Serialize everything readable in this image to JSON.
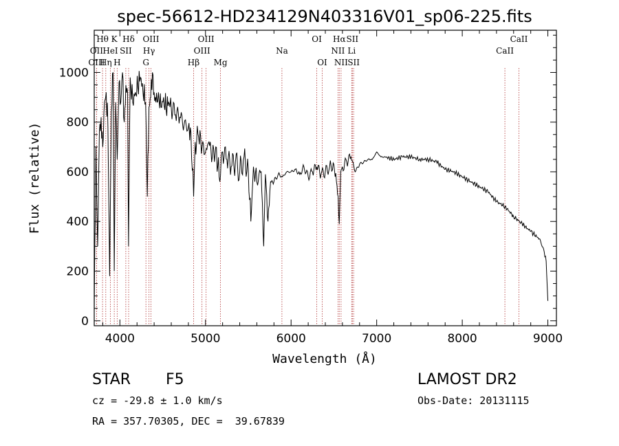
{
  "chart_data": {
    "type": "line",
    "title": "spec-56612-HD234129N403316V01_sp06-225.fits",
    "xlabel": "Wavelength (Å)",
    "ylabel": "Flux (relative)",
    "xlim": [
      3700,
      9100
    ],
    "ylim": [
      -20,
      1170
    ],
    "xticks": [
      4000,
      5000,
      6000,
      7000,
      8000,
      9000
    ],
    "yticks": [
      0,
      200,
      400,
      600,
      800,
      1000
    ],
    "grid": false,
    "series": [
      {
        "x": [
          3700,
          3720,
          3740,
          3760,
          3780,
          3800,
          3820,
          3840,
          3860,
          3880,
          3900,
          3920,
          3934,
          3950,
          3968,
          3990,
          4010,
          4030,
          4050,
          4070,
          4090,
          4101,
          4120,
          4150,
          4180,
          4210,
          4240,
          4270,
          4300,
          4320,
          4340,
          4360,
          4380,
          4400,
          4420,
          4450,
          4480,
          4510,
          4540,
          4570,
          4600,
          4650,
          4700,
          4750,
          4800,
          4830,
          4861,
          4880,
          4920,
          4960,
          5000,
          5040,
          5080,
          5120,
          5167,
          5200,
          5250,
          5300,
          5350,
          5400,
          5450,
          5500,
          5530,
          5560,
          5600,
          5650,
          5680,
          5700,
          5730,
          5760,
          5800,
          5850,
          5900,
          5950,
          6000,
          6050,
          6100,
          6150,
          6200,
          6250,
          6300,
          6350,
          6400,
          6450,
          6500,
          6530,
          6550,
          6563,
          6580,
          6600,
          6650,
          6700,
          6750,
          6800,
          6850,
          6900,
          6950,
          7000,
          7050,
          7100,
          7200,
          7300,
          7400,
          7500,
          7600,
          7700,
          7800,
          7900,
          8000,
          8100,
          8200,
          8300,
          8400,
          8500,
          8600,
          8700,
          8800,
          8900,
          8950,
          8980,
          9000
        ],
        "y": [
          40,
          700,
          300,
          760,
          820,
          700,
          880,
          920,
          780,
          180,
          840,
          1000,
          200,
          880,
          650,
          960,
          880,
          1000,
          800,
          950,
          920,
          300,
          980,
          880,
          920,
          940,
          980,
          920,
          880,
          500,
          860,
          900,
          1000,
          920,
          880,
          920,
          860,
          900,
          850,
          880,
          860,
          830,
          820,
          790,
          780,
          760,
          500,
          720,
          740,
          700,
          680,
          720,
          660,
          700,
          560,
          680,
          650,
          620,
          640,
          600,
          660,
          610,
          400,
          620,
          560,
          600,
          300,
          590,
          400,
          560,
          560,
          590,
          580,
          600,
          600,
          610,
          590,
          620,
          580,
          600,
          620,
          590,
          600,
          620,
          630,
          560,
          500,
          390,
          600,
          620,
          640,
          660,
          600,
          630,
          640,
          650,
          650,
          680,
          660,
          660,
          650,
          660,
          660,
          650,
          650,
          640,
          610,
          600,
          580,
          560,
          540,
          520,
          480,
          460,
          420,
          390,
          360,
          330,
          290,
          240,
          80
        ]
      }
    ],
    "line_markers": [
      {
        "label": "Hθ",
        "x": 3797,
        "row": 1
      },
      {
        "label": "OII",
        "x": 3727,
        "row": 2
      },
      {
        "label": "OIII",
        "x": 3727,
        "row": 3
      },
      {
        "label": "K",
        "x": 3934,
        "row": 1
      },
      {
        "label": "HeI",
        "x": 3889,
        "row": 2
      },
      {
        "label": "Hη",
        "x": 3835,
        "row": 3
      },
      {
        "label": "SII",
        "x": 4069,
        "row": 2
      },
      {
        "label": "H",
        "x": 3968,
        "row": 3
      },
      {
        "label": "Hδ",
        "x": 4102,
        "row": 1
      },
      {
        "label": "OIII",
        "x": 4363,
        "row": 1
      },
      {
        "label": "Hγ",
        "x": 4340,
        "row": 2
      },
      {
        "label": "G",
        "x": 4304,
        "row": 3
      },
      {
        "label": "OIII",
        "x": 5007,
        "row": 1
      },
      {
        "label": "OIII",
        "x": 4959,
        "row": 2
      },
      {
        "label": "Hβ",
        "x": 4861,
        "row": 3
      },
      {
        "label": "Mg",
        "x": 5175,
        "row": 3
      },
      {
        "label": "Na",
        "x": 5893,
        "row": 2
      },
      {
        "label": "OI",
        "x": 6300,
        "row": 1
      },
      {
        "label": "OI",
        "x": 6364,
        "row": 3
      },
      {
        "label": "Hα",
        "x": 6563,
        "row": 1
      },
      {
        "label": "NII",
        "x": 6548,
        "row": 2
      },
      {
        "label": "NII",
        "x": 6584,
        "row": 3
      },
      {
        "label": "SII",
        "x": 6716,
        "row": 1
      },
      {
        "label": "Li",
        "x": 6708,
        "row": 2
      },
      {
        "label": "SII",
        "x": 6731,
        "row": 3
      },
      {
        "label": "CaII",
        "x": 8662,
        "row": 1
      },
      {
        "label": "CaII",
        "x": 8498,
        "row": 2
      }
    ]
  },
  "info": {
    "object_type": "STAR",
    "subclass": "F5",
    "survey": "LAMOST DR2",
    "cz": "cz = -29.8 ± 1.0 km/s",
    "obs_date": "Obs-Date: 20131115",
    "radec": "RA = 357.70305, DEC =  39.67839"
  }
}
